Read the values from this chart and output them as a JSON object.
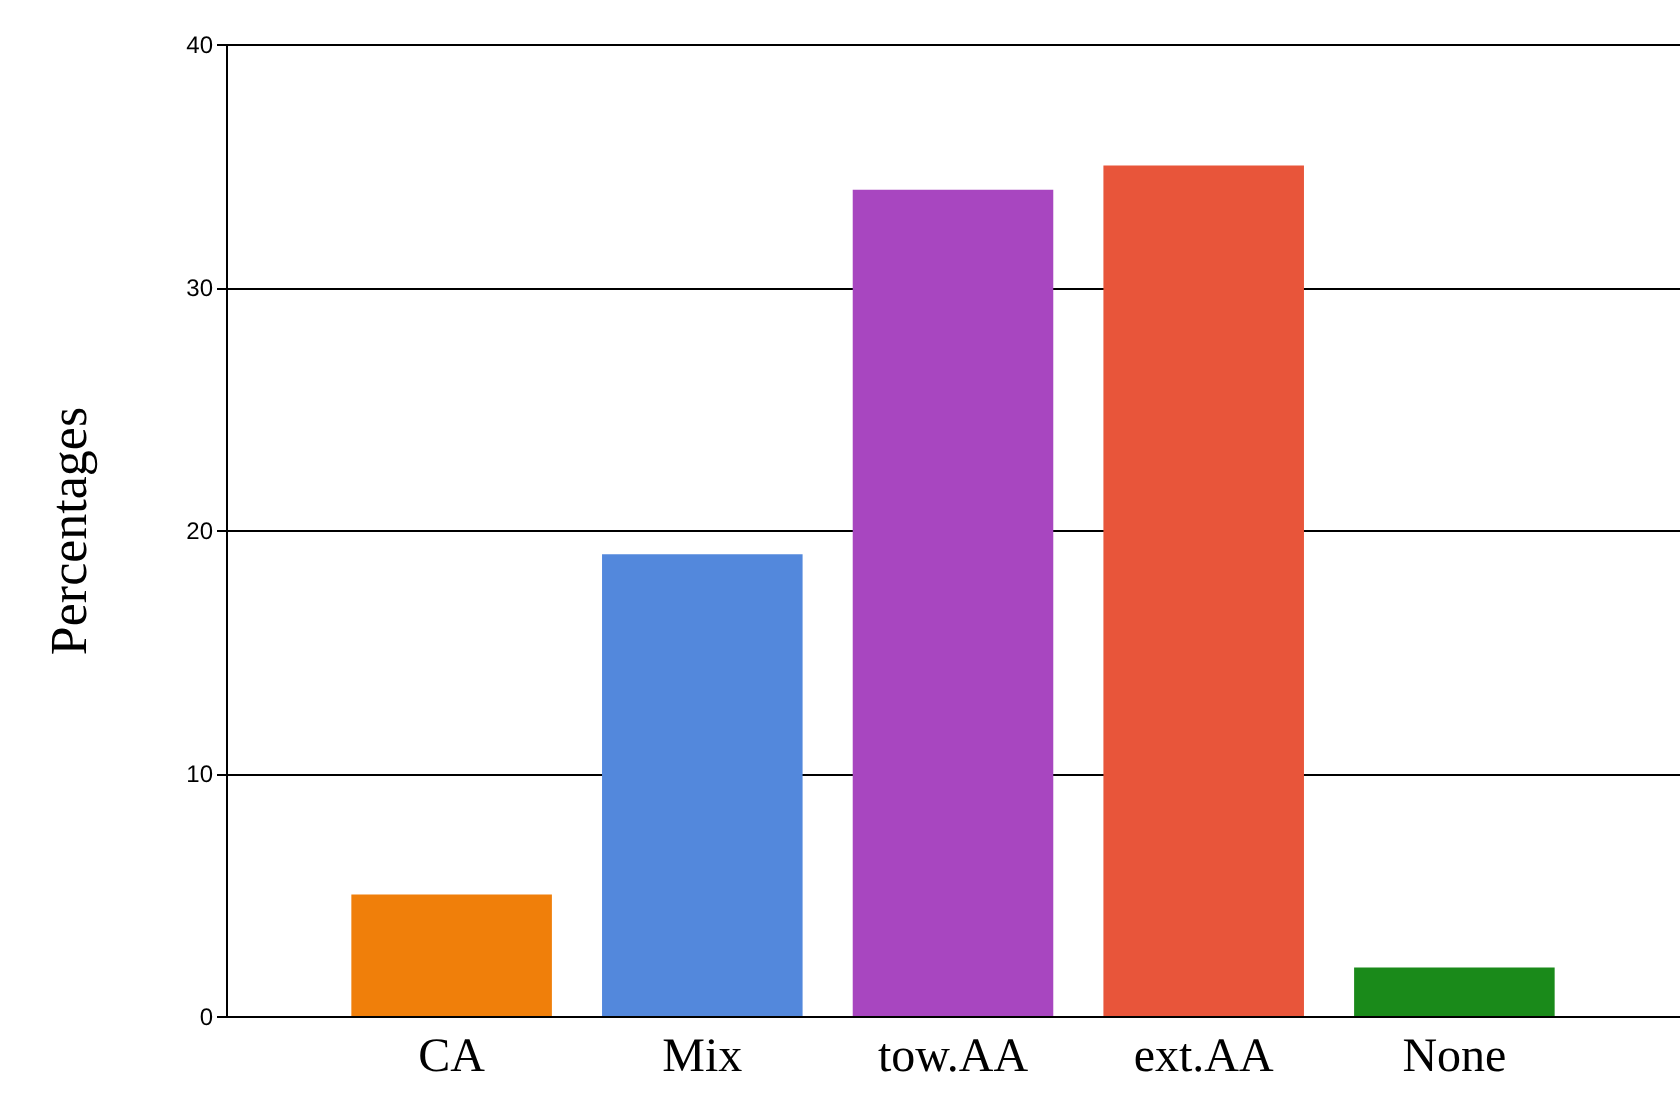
{
  "chart_data": {
    "type": "bar",
    "ylabel": "Percentages",
    "categories": [
      "CA",
      "Mix",
      "tow.AA",
      "ext.AA",
      "None"
    ],
    "values": [
      5,
      19,
      34,
      35,
      2
    ],
    "colors": [
      "#f07f0a",
      "#5388dc",
      "#a846c0",
      "#e8553a",
      "#1a8a1a"
    ],
    "ylim": [
      0,
      40
    ],
    "yticks": [
      0,
      10,
      20,
      30,
      40
    ],
    "grid": "y"
  }
}
